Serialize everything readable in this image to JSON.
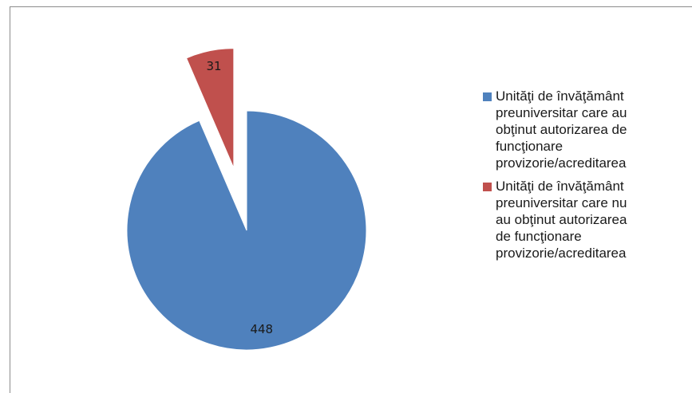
{
  "chart_data": {
    "type": "pie",
    "title": "",
    "slices": [
      {
        "label": "Unităţi de învăţământ preuniversitar care au obţinut autorizarea de funcţionare provizorie/acreditarea",
        "legend_lines": "Unităţi de învăţământ\npreuniversitar care au\nobţinut autorizarea de\nfuncţionare\nprovizorie/acreditarea",
        "value": 448,
        "value_label": "448",
        "color": "#4f81bd",
        "exploded": false
      },
      {
        "label": "Unităţi de învăţământ preuniversitar care nu au obţinut autorizarea de funcţionare provizorie/acreditarea",
        "legend_lines": "Unităţi de învăţământ\npreuniversitar care nu\nau obţinut autorizarea\nde funcţionare\nprovizorie/acreditarea",
        "value": 31,
        "value_label": "31",
        "color": "#c0504d",
        "exploded": true
      }
    ],
    "legend": {
      "position": "right"
    }
  }
}
